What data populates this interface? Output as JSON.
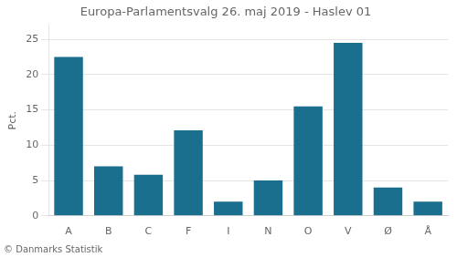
{
  "chart_data": {
    "type": "bar",
    "title": "Europa-Parlamentsvalg 26. maj 2019 - Haslev 01",
    "ylabel": "Pct.",
    "footer": "© Danmarks Statistik",
    "categories": [
      "A",
      "B",
      "C",
      "F",
      "I",
      "N",
      "O",
      "V",
      "Ø",
      "Å"
    ],
    "values": [
      22.5,
      7.0,
      5.8,
      12.1,
      2.0,
      5.0,
      15.5,
      24.5,
      4.0,
      2.0
    ],
    "color": "#1a6e8e",
    "ylim": [
      0,
      27
    ],
    "yticks": [
      0,
      5,
      10,
      15,
      20,
      25
    ],
    "grid": true
  }
}
